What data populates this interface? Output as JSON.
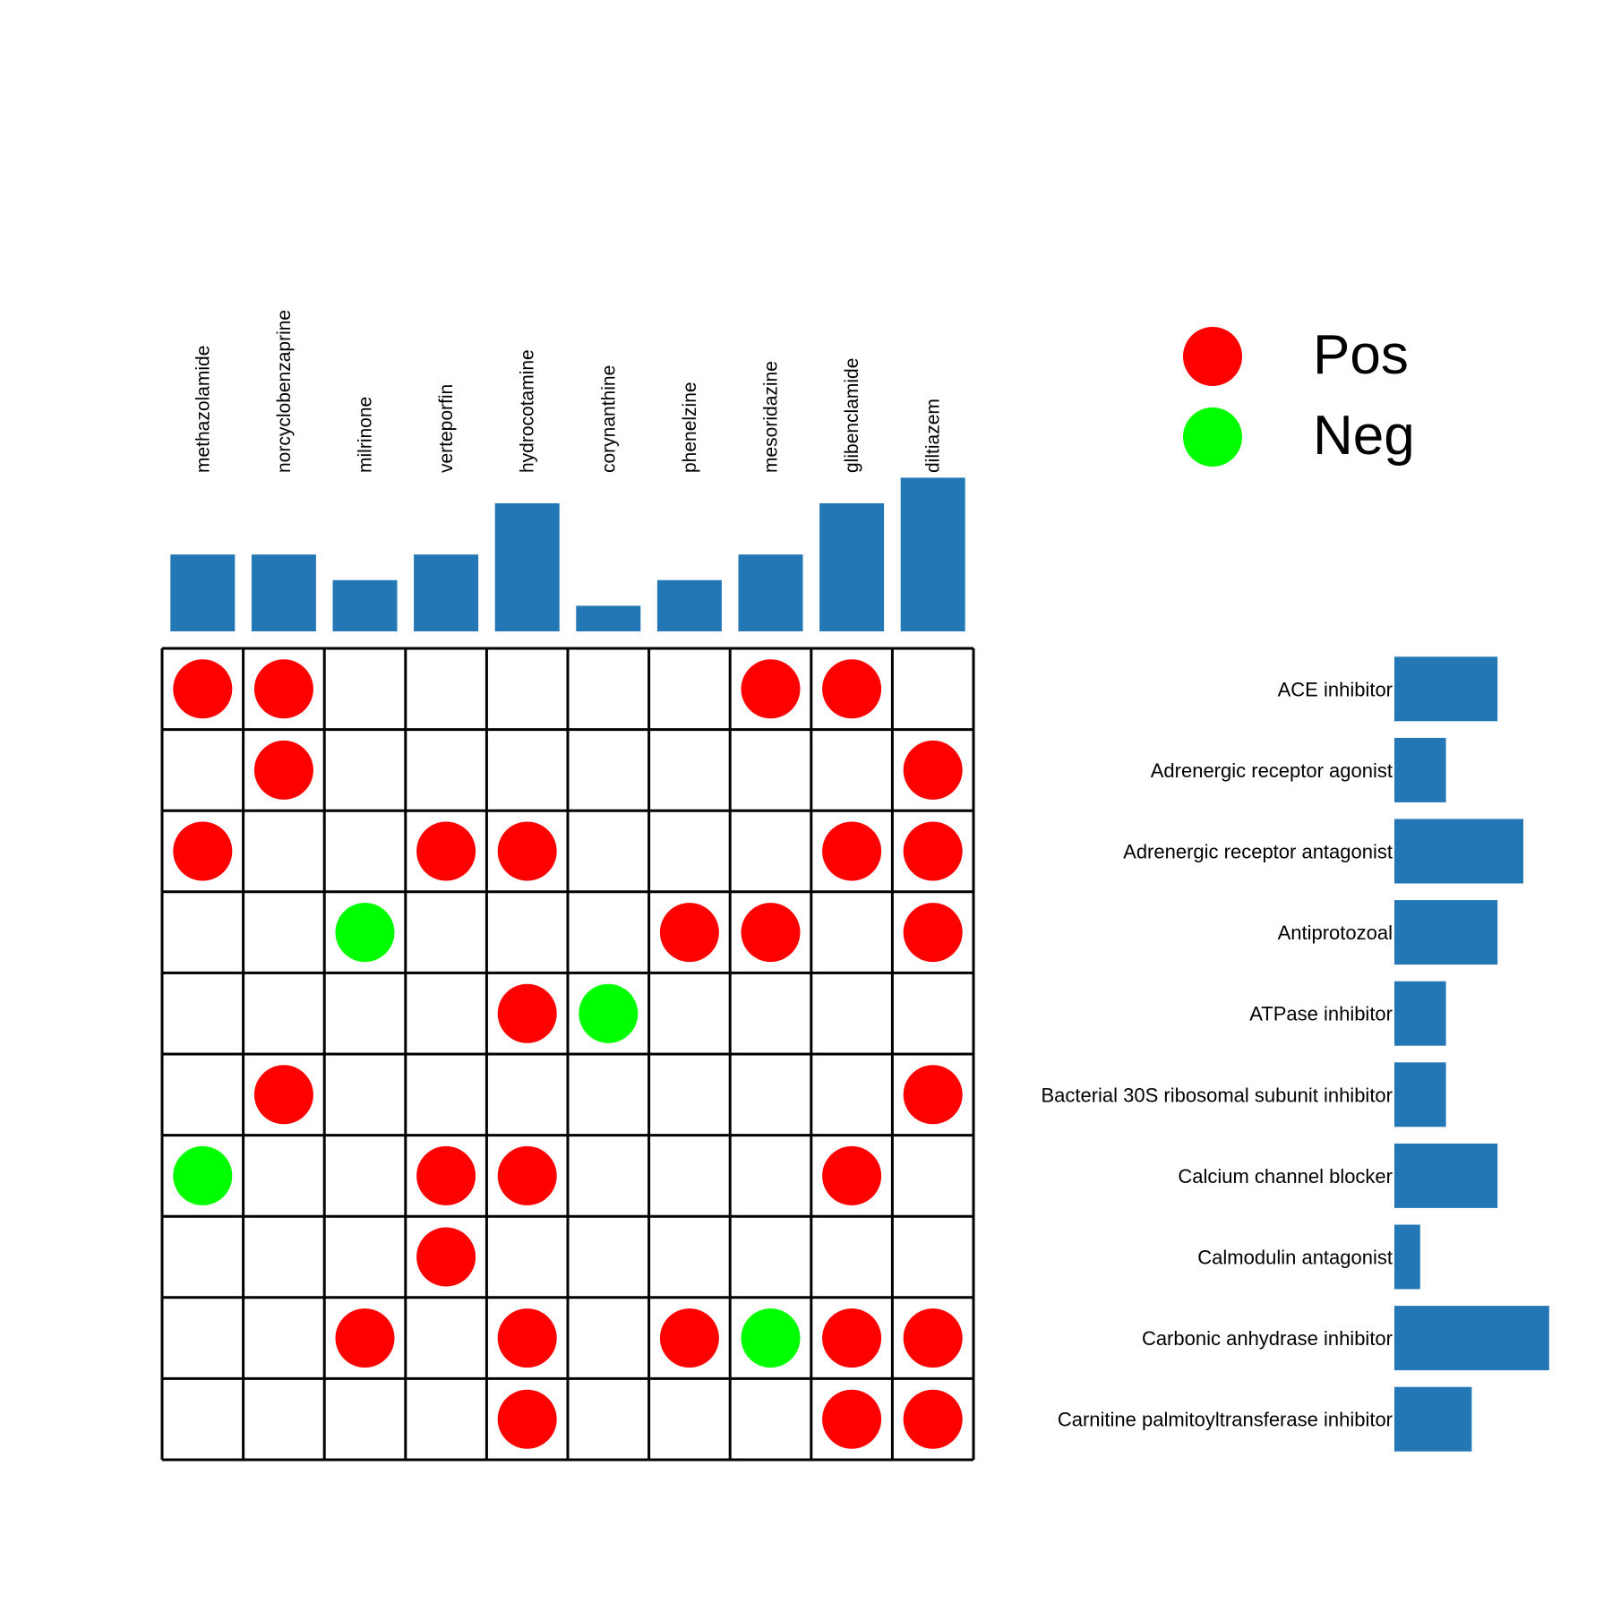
{
  "colors": {
    "pos": "#ff0000",
    "neg": "#00ff00",
    "bar": "#2377b4",
    "grid": "#000000"
  },
  "legend": {
    "pos_label": "Pos",
    "neg_label": "Neg"
  },
  "chart_data": {
    "type": "heatmap",
    "columns": [
      "methazolamide",
      "norcyclobenzaprine",
      "milrinone",
      "verteporfin",
      "hydrocotamine",
      "corynanthine",
      "phenelzine",
      "mesoridazine",
      "glibenclamide",
      "diltiazem"
    ],
    "rows": [
      "ACE inhibitor",
      "Adrenergic receptor agonist",
      "Adrenergic receptor antagonist",
      "Antiprotozoal",
      "ATPase inhibitor",
      "Bacterial 30S ribosomal subunit inhibitor",
      "Calcium channel blocker",
      "Calmodulin antagonist",
      "Carbonic anhydrase inhibitor",
      "Carnitine palmitoyltransferase inhibitor"
    ],
    "cells": [
      [
        1,
        1,
        0,
        0,
        0,
        0,
        0,
        1,
        1,
        0
      ],
      [
        0,
        1,
        0,
        0,
        0,
        0,
        0,
        0,
        0,
        1
      ],
      [
        1,
        0,
        0,
        1,
        1,
        0,
        0,
        0,
        1,
        1
      ],
      [
        0,
        0,
        -1,
        0,
        0,
        0,
        1,
        1,
        0,
        1
      ],
      [
        0,
        0,
        0,
        0,
        1,
        -1,
        0,
        0,
        0,
        0
      ],
      [
        0,
        1,
        0,
        0,
        0,
        0,
        0,
        0,
        0,
        1
      ],
      [
        -1,
        0,
        0,
        1,
        1,
        0,
        0,
        0,
        1,
        0
      ],
      [
        0,
        0,
        0,
        1,
        0,
        0,
        0,
        0,
        0,
        0
      ],
      [
        0,
        0,
        1,
        0,
        1,
        0,
        1,
        -1,
        1,
        1
      ],
      [
        0,
        0,
        0,
        0,
        1,
        0,
        0,
        0,
        1,
        1
      ]
    ],
    "cell_encoding": {
      "1": "Pos",
      "-1": "Neg",
      "0": "none"
    },
    "column_totals": [
      3,
      3,
      2,
      3,
      5,
      1,
      2,
      3,
      5,
      6
    ],
    "row_totals": [
      4,
      2,
      5,
      4,
      2,
      2,
      4,
      1,
      6,
      3
    ]
  }
}
